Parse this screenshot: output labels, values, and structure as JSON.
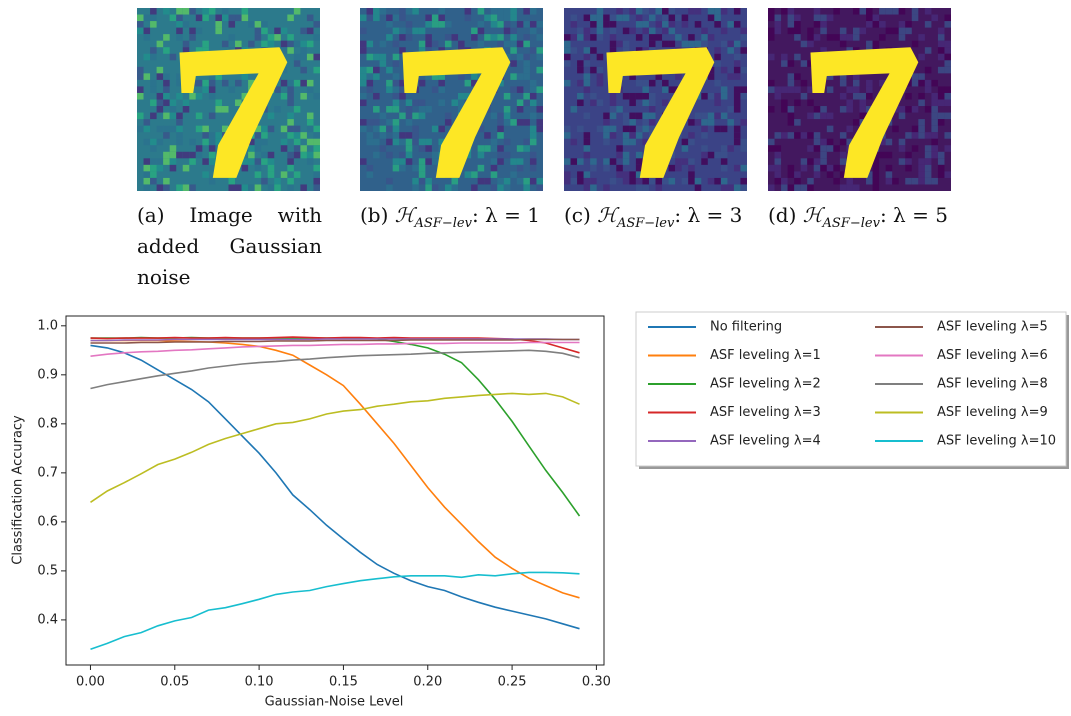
{
  "panels": [
    {
      "label": "(a)",
      "text": "Image with added Gaussian noise"
    },
    {
      "label": "(b)",
      "text": "ℋ",
      "sub": "ASF−lev",
      "tail": ": λ = 1"
    },
    {
      "label": "(c)",
      "text": "ℋ",
      "sub": "ASF−lev",
      "tail": ": λ = 3"
    },
    {
      "label": "(d)",
      "text": "ℋ",
      "sub": "ASF−lev",
      "tail": ": λ = 5"
    }
  ],
  "chart_data": {
    "type": "line",
    "xlabel": "Gaussian-Noise Level",
    "ylabel": "Classification Accuracy",
    "x": [
      0,
      0.01,
      0.02,
      0.03,
      0.04,
      0.05,
      0.06,
      0.07,
      0.08,
      0.09,
      0.1,
      0.11,
      0.12,
      0.13,
      0.14,
      0.15,
      0.16,
      0.17,
      0.18,
      0.19,
      0.2,
      0.21,
      0.22,
      0.23,
      0.24,
      0.25,
      0.26,
      0.27,
      0.28,
      0.29
    ],
    "xlim": [
      -0.0145,
      0.3045
    ],
    "ylim": [
      0.308,
      1.02
    ],
    "xticks": [
      {
        "value": 0,
        "label": "0.00"
      },
      0.05,
      {
        "value": 0.1,
        "label": "0.10"
      },
      0.15,
      {
        "value": 0.2,
        "label": "0.20"
      },
      0.25,
      {
        "value": 0.3,
        "label": "0.30"
      }
    ],
    "yticks": [
      {
        "value": 1,
        "label": "1.0"
      },
      0.9,
      0.8,
      0.7,
      0.6,
      0.5,
      0.4
    ],
    "series": [
      {
        "name": "No filtering",
        "color": "#1f77b4",
        "values": [
          0.96,
          0.955,
          0.945,
          0.93,
          0.91,
          0.89,
          0.87,
          0.845,
          0.81,
          0.775,
          0.74,
          0.7,
          0.655,
          0.625,
          0.593,
          0.565,
          0.538,
          0.513,
          0.495,
          0.48,
          0.468,
          0.46,
          0.447,
          0.436,
          0.426,
          0.418,
          0.41,
          0.402,
          0.392,
          0.382
        ]
      },
      {
        "name": "ASF leveling λ=1",
        "color": "#ff7f0e",
        "values": [
          0.97,
          0.97,
          0.97,
          0.97,
          0.97,
          0.969,
          0.968,
          0.967,
          0.965,
          0.962,
          0.958,
          0.95,
          0.94,
          0.92,
          0.9,
          0.878,
          0.84,
          0.8,
          0.76,
          0.715,
          0.67,
          0.63,
          0.595,
          0.56,
          0.528,
          0.505,
          0.485,
          0.47,
          0.455,
          0.445
        ]
      },
      {
        "name": "ASF leveling λ=2",
        "color": "#2ca02c",
        "values": [
          0.975,
          0.975,
          0.975,
          0.976,
          0.975,
          0.975,
          0.976,
          0.975,
          0.975,
          0.975,
          0.975,
          0.975,
          0.975,
          0.975,
          0.975,
          0.975,
          0.974,
          0.973,
          0.968,
          0.962,
          0.955,
          0.942,
          0.925,
          0.89,
          0.85,
          0.805,
          0.755,
          0.705,
          0.66,
          0.612
        ]
      },
      {
        "name": "ASF leveling λ=3",
        "color": "#d62728",
        "values": [
          0.975,
          0.974,
          0.975,
          0.975,
          0.975,
          0.976,
          0.975,
          0.975,
          0.976,
          0.975,
          0.975,
          0.976,
          0.977,
          0.976,
          0.975,
          0.976,
          0.976,
          0.975,
          0.976,
          0.975,
          0.975,
          0.975,
          0.975,
          0.975,
          0.974,
          0.973,
          0.97,
          0.965,
          0.955,
          0.945
        ]
      },
      {
        "name": "ASF leveling λ=4",
        "color": "#9467bd",
        "values": [
          0.97,
          0.97,
          0.971,
          0.971,
          0.971,
          0.972,
          0.972,
          0.972,
          0.972,
          0.972,
          0.972,
          0.972,
          0.972,
          0.972,
          0.973,
          0.973,
          0.973,
          0.973,
          0.973,
          0.973,
          0.973,
          0.973,
          0.973,
          0.973,
          0.973,
          0.973,
          0.973,
          0.973,
          0.972,
          0.972
        ]
      },
      {
        "name": "ASF leveling λ=5",
        "color": "#8c564b",
        "values": [
          0.965,
          0.965,
          0.965,
          0.966,
          0.966,
          0.967,
          0.967,
          0.967,
          0.968,
          0.968,
          0.968,
          0.969,
          0.969,
          0.969,
          0.97,
          0.97,
          0.97,
          0.97,
          0.97,
          0.971,
          0.971,
          0.971,
          0.971,
          0.971,
          0.971,
          0.971,
          0.972,
          0.972,
          0.972,
          0.972
        ]
      },
      {
        "name": "ASF leveling λ=6",
        "color": "#e377c2",
        "values": [
          0.938,
          0.942,
          0.945,
          0.947,
          0.948,
          0.95,
          0.951,
          0.953,
          0.955,
          0.957,
          0.958,
          0.959,
          0.96,
          0.96,
          0.961,
          0.962,
          0.962,
          0.963,
          0.963,
          0.964,
          0.964,
          0.964,
          0.965,
          0.965,
          0.965,
          0.965,
          0.966,
          0.966,
          0.966,
          0.966
        ]
      },
      {
        "name": "ASF leveling λ=8",
        "color": "#7f7f7f",
        "values": [
          0.872,
          0.88,
          0.886,
          0.892,
          0.898,
          0.903,
          0.908,
          0.914,
          0.918,
          0.922,
          0.925,
          0.927,
          0.93,
          0.932,
          0.935,
          0.937,
          0.939,
          0.94,
          0.941,
          0.942,
          0.944,
          0.945,
          0.946,
          0.947,
          0.948,
          0.949,
          0.95,
          0.948,
          0.944,
          0.935
        ]
      },
      {
        "name": "ASF leveling λ=9",
        "color": "#bcbd22",
        "values": [
          0.64,
          0.663,
          0.68,
          0.698,
          0.717,
          0.728,
          0.742,
          0.758,
          0.77,
          0.78,
          0.79,
          0.8,
          0.803,
          0.81,
          0.82,
          0.826,
          0.829,
          0.836,
          0.84,
          0.845,
          0.847,
          0.852,
          0.855,
          0.858,
          0.86,
          0.862,
          0.86,
          0.862,
          0.855,
          0.84
        ]
      },
      {
        "name": "ASF leveling λ=10",
        "color": "#17becf",
        "values": [
          0.34,
          0.352,
          0.366,
          0.374,
          0.388,
          0.398,
          0.405,
          0.42,
          0.425,
          0.433,
          0.442,
          0.452,
          0.457,
          0.46,
          0.468,
          0.474,
          0.48,
          0.484,
          0.488,
          0.49,
          0.49,
          0.49,
          0.487,
          0.492,
          0.49,
          0.494,
          0.497,
          0.497,
          0.496,
          0.494
        ]
      }
    ]
  }
}
